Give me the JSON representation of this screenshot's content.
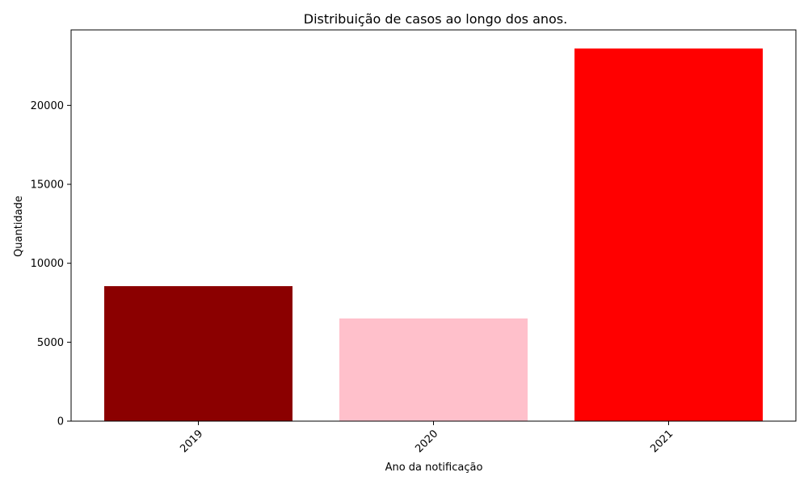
{
  "chart_data": {
    "type": "bar",
    "title": "Distribuição de casos ao longo dos anos.",
    "xlabel": "Ano da notificação",
    "ylabel": "Quantidade",
    "categories": [
      "2019",
      "2020",
      "2021"
    ],
    "values": [
      8550,
      6500,
      23600
    ],
    "bar_colors": [
      "#8b0000",
      "#ffc0cb",
      "#ff0000"
    ],
    "ylim": [
      0,
      24780
    ],
    "yticks": [
      0,
      5000,
      10000,
      15000,
      20000
    ],
    "ytick_labels": [
      "0",
      "5000",
      "10000",
      "15000",
      "20000"
    ],
    "xtick_rotation_deg": 45,
    "grid": false,
    "legend": "none"
  }
}
